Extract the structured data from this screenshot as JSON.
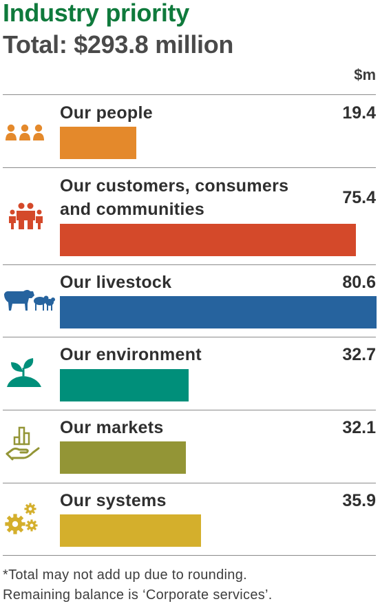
{
  "title": "Industry priority",
  "subtitle": "Total: $293.8 million",
  "unit_label": "$m",
  "footnote": {
    "line1": "*Total may not add up due to rounding.",
    "line2": "Remaining balance is ‘Corporate services’."
  },
  "chart_data": {
    "type": "bar",
    "orientation": "horizontal",
    "title": "Industry priority",
    "subtitle": "Total: $293.8 million",
    "unit": "$m",
    "xlim": [
      0,
      80.6
    ],
    "categories": [
      "Our people",
      "Our customers, consumers and communities",
      "Our livestock",
      "Our environment",
      "Our markets",
      "Our systems"
    ],
    "category_lines": [
      [
        "Our people"
      ],
      [
        "Our customers, consumers",
        "and communities"
      ],
      [
        "Our livestock"
      ],
      [
        "Our environment"
      ],
      [
        "Our markets"
      ],
      [
        "Our systems"
      ]
    ],
    "values": [
      19.4,
      75.4,
      80.6,
      32.7,
      32.1,
      35.9
    ],
    "value_labels": [
      "19.4",
      "75.4",
      "80.6",
      "32.7",
      "32.1",
      "35.9"
    ],
    "colors": [
      "#e4892b",
      "#d4492a",
      "#26639e",
      "#008f7a",
      "#939536",
      "#d4af2c"
    ],
    "icons": [
      "people-icon",
      "family-icon",
      "livestock-icon",
      "plant-icon",
      "market-hand-icon",
      "gears-icon"
    ]
  }
}
